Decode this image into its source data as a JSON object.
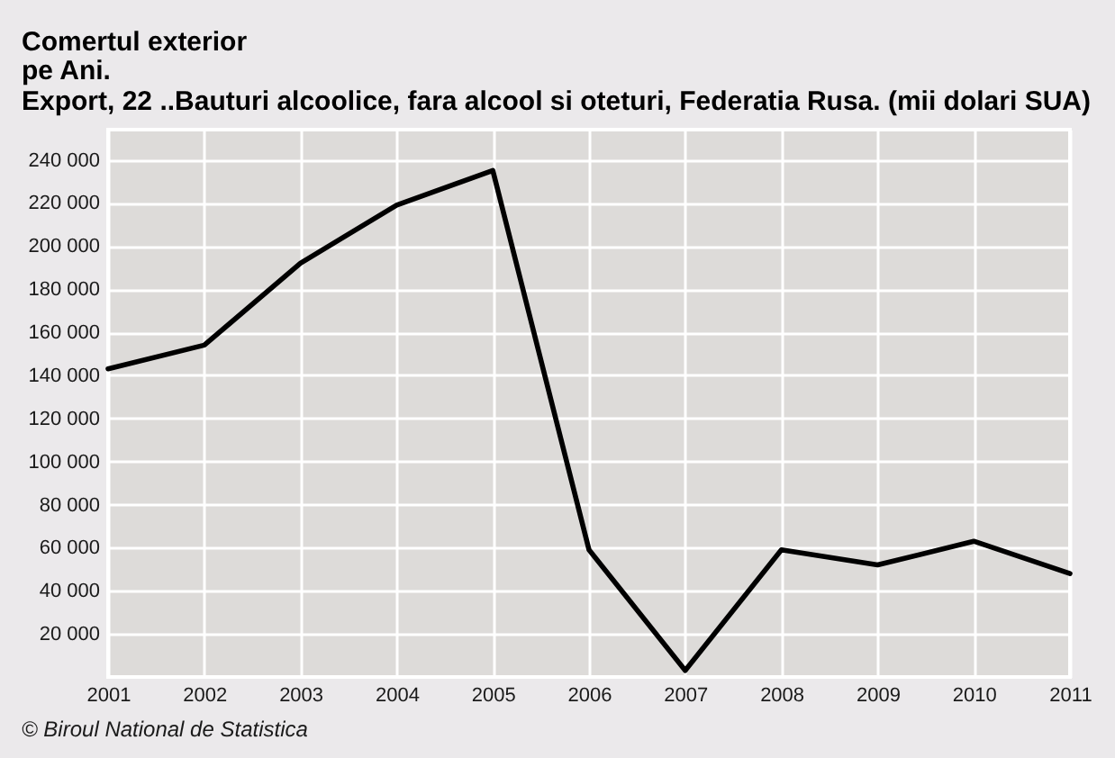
{
  "chart_data": {
    "type": "line",
    "title": "Comertul exterior",
    "subtitle": "pe Ani.\nExport, 22 ..Bauturi alcoolice, fara alcool si oteturi, Federatia Rusa. (mii dolari SUA)",
    "annotations": [
      "© Biroul National de Statistica"
    ],
    "categories": [
      "2001",
      "2002",
      "2003",
      "2004",
      "2005",
      "2006",
      "2007",
      "2008",
      "2009",
      "2010",
      "2011"
    ],
    "values": [
      143000,
      154000,
      192000,
      219000,
      235000,
      59000,
      3000,
      59000,
      52000,
      63000,
      48000
    ],
    "color": "#000000",
    "line_style": "solid",
    "ylim": [
      0,
      254000
    ],
    "yticks": [
      {
        "value": 20000,
        "label": "20 000"
      },
      {
        "value": 40000,
        "label": "40 000"
      },
      {
        "value": 60000,
        "label": "60 000"
      },
      {
        "value": 80000,
        "label": "80 000"
      },
      {
        "value": 100000,
        "label": "100 000"
      },
      {
        "value": 120000,
        "label": "120 000"
      },
      {
        "value": 140000,
        "label": "140 000"
      },
      {
        "value": 160000,
        "label": "160 000"
      },
      {
        "value": 180000,
        "label": "180 000"
      },
      {
        "value": 200000,
        "label": "200 000"
      },
      {
        "value": 220000,
        "label": "220 000"
      },
      {
        "value": 240000,
        "label": "240 000"
      }
    ],
    "grid": true
  }
}
